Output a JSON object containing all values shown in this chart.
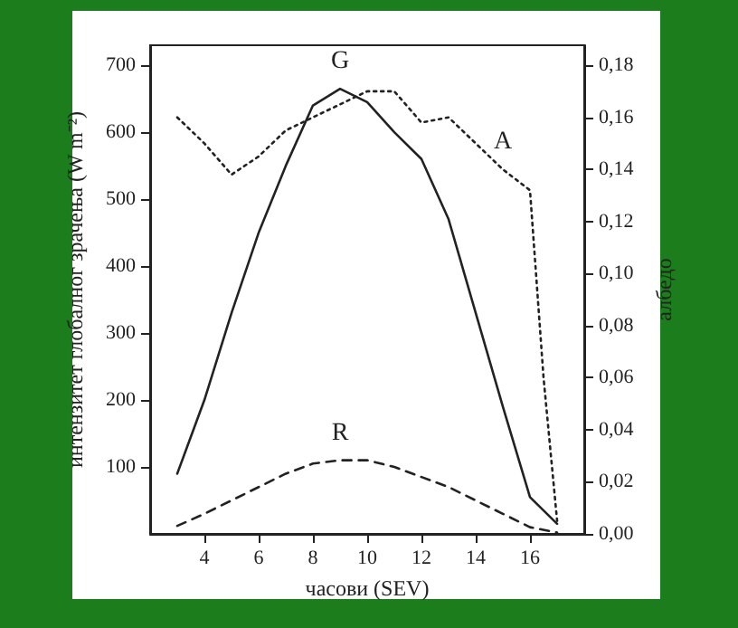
{
  "chart_data": {
    "type": "line",
    "xlabel": "часови (SEV)",
    "ylabel": "интензитет глобалног зрачења (W m⁻²)",
    "y2label": "албедо",
    "x": [
      3,
      4,
      5,
      6,
      7,
      8,
      9,
      10,
      11,
      12,
      13,
      14,
      15,
      16,
      17
    ],
    "xlim": [
      2,
      18
    ],
    "xticks": [
      4,
      6,
      8,
      10,
      12,
      14,
      16
    ],
    "ylim": [
      0,
      730
    ],
    "yticks": [
      100,
      200,
      300,
      400,
      500,
      600,
      700
    ],
    "y2lim": [
      0,
      0.1877
    ],
    "y2ticks": [
      {
        "value": 0,
        "label": "0,00"
      },
      {
        "value": 0.02,
        "label": "0,02"
      },
      {
        "value": 0.04,
        "label": "0,04"
      },
      {
        "value": 0.06,
        "label": "0,06"
      },
      {
        "value": 0.08,
        "label": "0,08"
      },
      {
        "value": 0.1,
        "label": "0,10"
      },
      {
        "value": 0.12,
        "label": "0,12"
      },
      {
        "value": 0.14,
        "label": "0,14"
      },
      {
        "value": 0.16,
        "label": "0,16"
      },
      {
        "value": 0.18,
        "label": "0,18"
      }
    ],
    "grid": false,
    "legend": false,
    "marker": "none",
    "series": [
      {
        "name": "G",
        "color": "#222222",
        "line_style": "solid",
        "values": [
          90,
          200,
          330,
          450,
          550,
          640,
          665,
          645,
          600,
          560,
          470,
          330,
          190,
          55,
          15
        ]
      },
      {
        "name": "A",
        "color": "#222222",
        "line_style": "dotted",
        "axis": "y2",
        "x": [
          3,
          4,
          5,
          6,
          7,
          8,
          9,
          10,
          11,
          12,
          13,
          14,
          15,
          16,
          16.5,
          17
        ],
        "values": [
          0.16,
          0.15,
          0.138,
          0.145,
          0.155,
          0.16,
          0.165,
          0.17,
          0.17,
          0.158,
          0.16,
          0.15,
          0.14,
          0.132,
          0.06,
          0.005
        ]
      },
      {
        "name": "R",
        "color": "#222222",
        "line_style": "dashed",
        "values": [
          12,
          30,
          50,
          70,
          90,
          105,
          110,
          110,
          100,
          85,
          70,
          50,
          30,
          10,
          2
        ]
      }
    ]
  }
}
